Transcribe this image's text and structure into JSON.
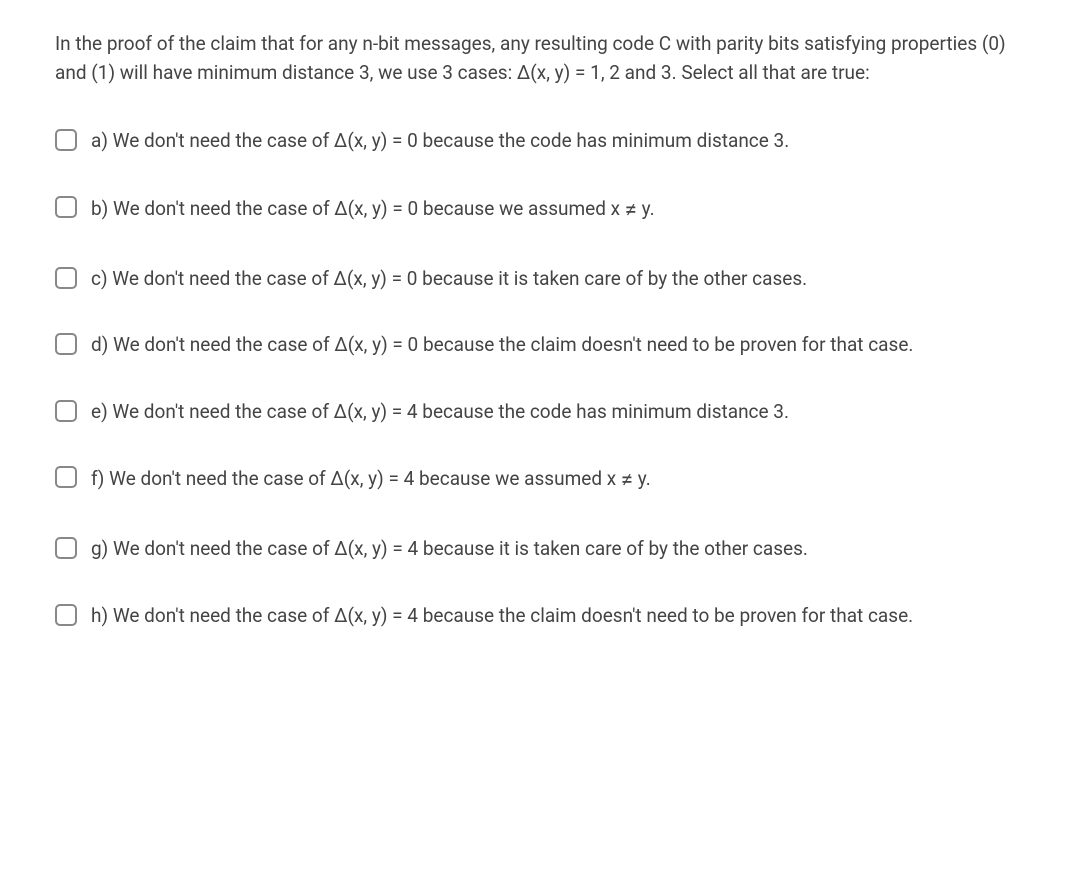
{
  "colors": {
    "text": "#444444",
    "checkbox_border": "#888888",
    "background": "#ffffff"
  },
  "typography": {
    "font_size": 19,
    "line_height": 1.5
  },
  "question": {
    "stem": "In the proof of the claim that for any n-bit messages, any resulting code C with parity bits satisfying properties (0) and (1) will have minimum distance 3, we use 3 cases: Δ(x, y) = 1, 2 and 3. Select all that are true:"
  },
  "options": [
    {
      "letter": "a)",
      "text": "We don't need the case of Δ(x, y) = 0 because the code has minimum distance 3.",
      "has_neq": false
    },
    {
      "letter": "b)",
      "text_before": "We don't need the case of Δ(x, y) = 0 because we assumed x ",
      "text_after": " y.",
      "has_neq": true
    },
    {
      "letter": "c)",
      "text": "We don't need the case of Δ(x, y) = 0 because it is taken care of by the other cases.",
      "has_neq": false
    },
    {
      "letter": "d)",
      "text": "We don't need the case of Δ(x, y) = 0 because the claim doesn't need to be proven for that case.",
      "has_neq": false
    },
    {
      "letter": "e)",
      "text": "We don't need the case of Δ(x, y) = 4 because the code has minimum distance 3.",
      "has_neq": false
    },
    {
      "letter": "f)",
      "text_before": "We don't need the case of Δ(x, y) = 4 because we assumed x ",
      "text_after": " y.",
      "has_neq": true
    },
    {
      "letter": "g)",
      "text": "We don't need the case of Δ(x, y) = 4 because it is taken care of by the other cases.",
      "has_neq": false
    },
    {
      "letter": "h)",
      "text": "We don't need the case of Δ(x, y) = 4 because the claim doesn't need to be proven for that case.",
      "has_neq": false
    }
  ],
  "neq_symbol": "≠"
}
